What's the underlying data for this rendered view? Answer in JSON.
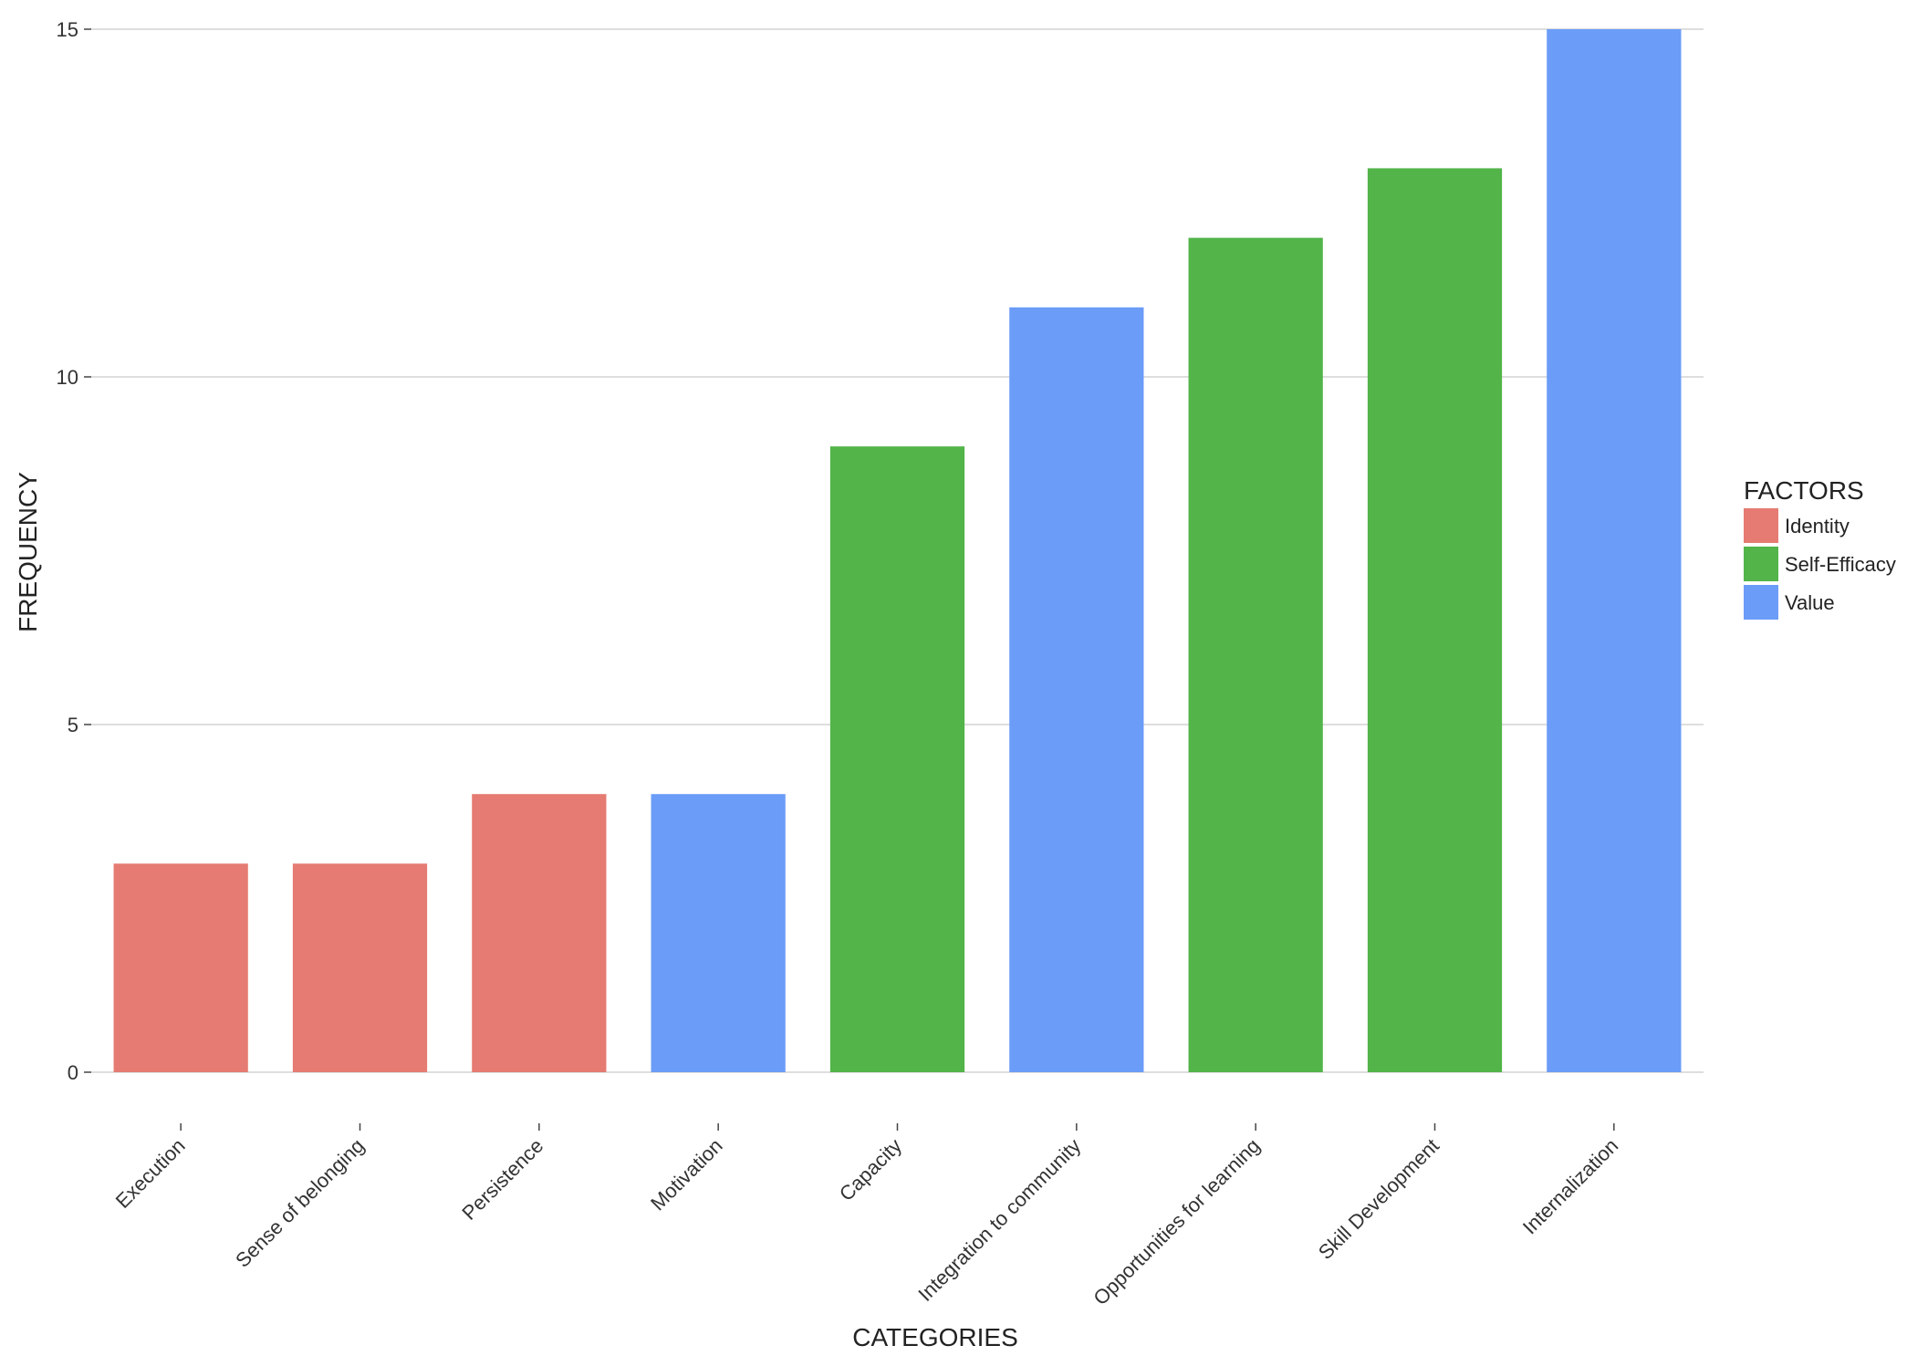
{
  "chart_data": {
    "type": "bar",
    "title": "",
    "xlabel": "CATEGORIES",
    "ylabel": "FREQUENCY",
    "ylim": [
      0,
      15
    ],
    "yticks": [
      "0",
      "5",
      "10",
      "15"
    ],
    "grid": true,
    "legend_position": "right",
    "categories": [
      "Execution",
      "Sense of belonging",
      "Persistence",
      "Motivation",
      "Capacity",
      "Integration to community",
      "Opportunities for learning",
      "Skill Development",
      "Internalization"
    ],
    "values": [
      3,
      3,
      4,
      4,
      9,
      11,
      12,
      13,
      15
    ],
    "factor_of_category": [
      "Identity",
      "Identity",
      "Identity",
      "Value",
      "Self-Efficacy",
      "Value",
      "Self-Efficacy",
      "Self-Efficacy",
      "Value"
    ],
    "legend": {
      "title": "FACTORS",
      "entries": [
        {
          "label": "Identity",
          "color": "#e57b72"
        },
        {
          "label": "Self-Efficacy",
          "color": "#52b449"
        },
        {
          "label": "Value",
          "color": "#6b9cf7"
        }
      ]
    }
  }
}
